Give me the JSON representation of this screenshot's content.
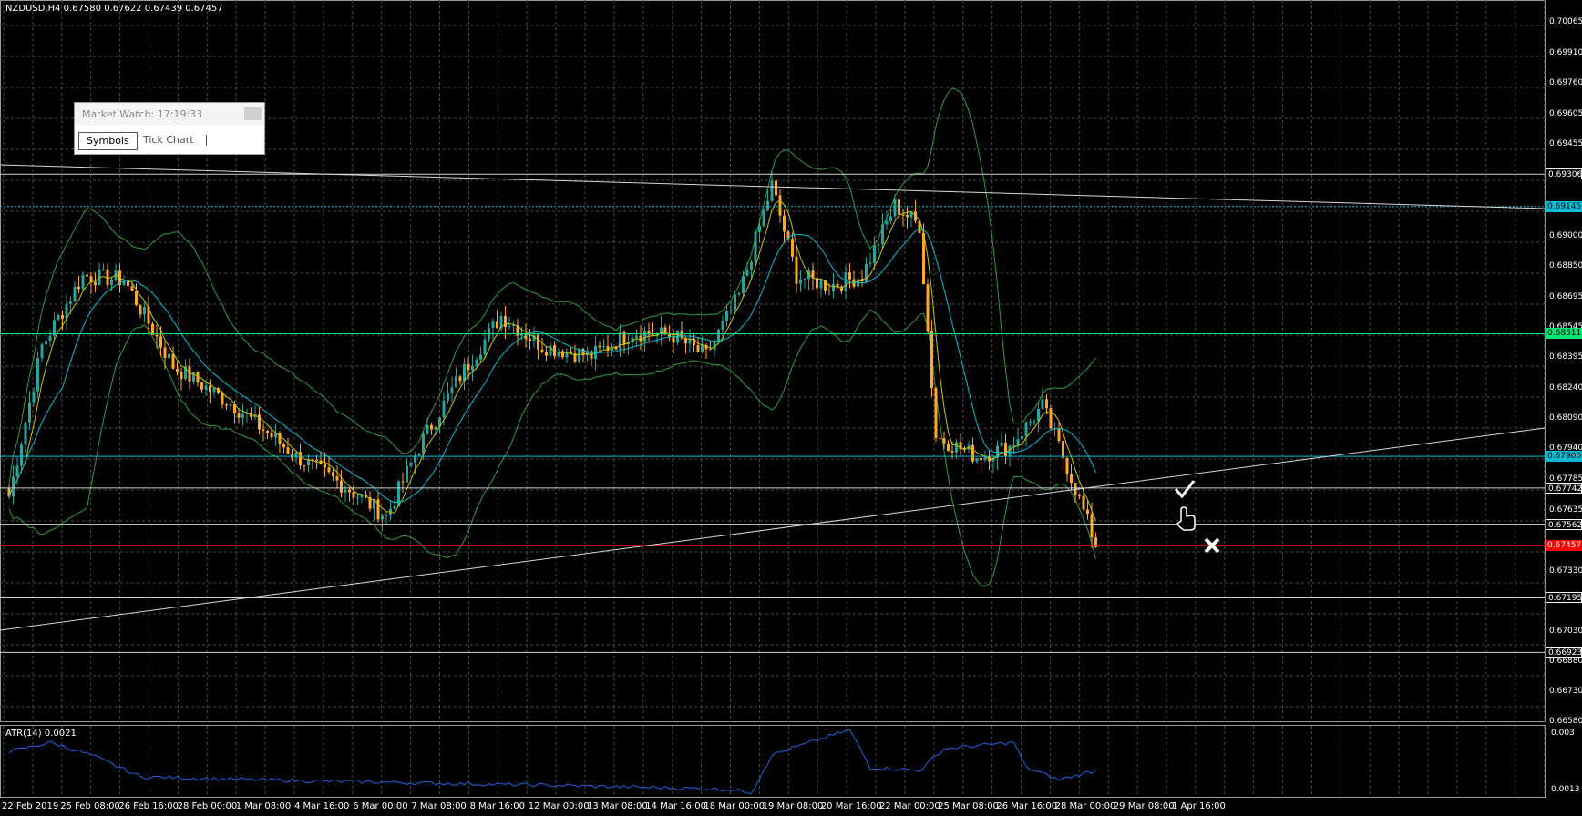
{
  "header": {
    "symbol": "NZDUSD,H4",
    "quote": "0.67580 0.67622 0.67439 0.67457"
  },
  "indicator": {
    "label": "ATR(14) 0.0021",
    "scale_top": "0.003",
    "scale_bottom": "0.0013"
  },
  "market_watch": {
    "title": "Market Watch: 17:19:33",
    "tabs": [
      "Symbols",
      "Tick Chart"
    ]
  },
  "price_axis": [
    "0.70065",
    "0.69910",
    "0.69760",
    "0.69605",
    "0.69455",
    "0.69000",
    "0.68850",
    "0.68695",
    "0.68545",
    "0.68395",
    "0.68240",
    "0.68090",
    "0.67940",
    "0.67785",
    "0.67635",
    "0.67330",
    "0.67030",
    "0.66880",
    "0.66730",
    "0.66580"
  ],
  "price_tags": [
    {
      "text": "0.69306",
      "bg": "#000000",
      "fg": "#ffffff"
    },
    {
      "text": "0.69145",
      "bg": "#00bcd4",
      "fg": "#000000"
    },
    {
      "text": "0.68511",
      "bg": "#00e676",
      "fg": "#000000"
    },
    {
      "text": "0.67900",
      "bg": "#00bcd4",
      "fg": "#000000"
    },
    {
      "text": "0.67742",
      "bg": "#000000",
      "fg": "#ffffff"
    },
    {
      "text": "0.67562",
      "bg": "#000000",
      "fg": "#ffffff"
    },
    {
      "text": "0.67457",
      "bg": "#ff0000",
      "fg": "#ffffff"
    },
    {
      "text": "0.67195",
      "bg": "#000000",
      "fg": "#ffffff"
    },
    {
      "text": "0.66923",
      "bg": "#000000",
      "fg": "#ffffff"
    }
  ],
  "time_axis": [
    "22 Feb 2019",
    "25 Feb 08:00",
    "26 Feb 16:00",
    "28 Feb 00:00",
    "1 Mar 08:00",
    "4 Mar 16:00",
    "6 Mar 00:00",
    "7 Mar 08:00",
    "8 Mar 16:00",
    "12 Mar 00:00",
    "13 Mar 08:00",
    "14 Mar 16:00",
    "18 Mar 00:00",
    "19 Mar 08:00",
    "20 Mar 16:00",
    "22 Mar 00:00",
    "25 Mar 08:00",
    "26 Mar 16:00",
    "28 Mar 00:00",
    "29 Mar 08:00",
    "1 Apr 16:00"
  ],
  "colors": {
    "grid": "#4a4a4a",
    "bull": "#26a69a",
    "bear": "#ffa726",
    "bands": "#2e9e3e",
    "ma_fast": "#c6c600",
    "ma_slow": "#00bcd4",
    "atr": "#1e63e6",
    "support": "#ff0000"
  },
  "icons": [
    "checkmark-icon",
    "hand-pointer-icon",
    "close-x-icon"
  ]
}
